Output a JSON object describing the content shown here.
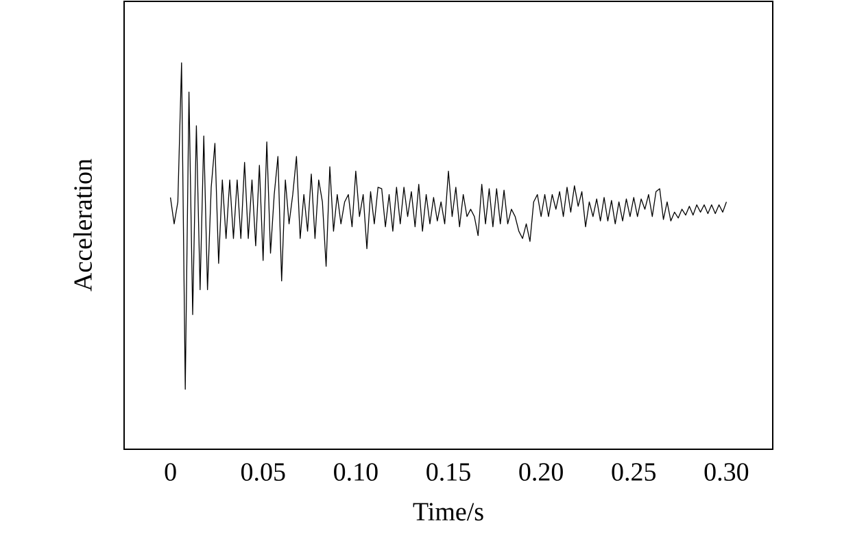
{
  "chart_data": {
    "type": "line",
    "xlabel": "Time/s",
    "ylabel": "Acceleration",
    "x": [
      0,
      0.002,
      0.004,
      0.006,
      0.008,
      0.01,
      0.012,
      0.014,
      0.016,
      0.018,
      0.02,
      0.022,
      0.024,
      0.026,
      0.028,
      0.03,
      0.032,
      0.034,
      0.036,
      0.038,
      0.04,
      0.042,
      0.044,
      0.046,
      0.048,
      0.05,
      0.052,
      0.054,
      0.056,
      0.058,
      0.06,
      0.062,
      0.064,
      0.066,
      0.068,
      0.07,
      0.072,
      0.074,
      0.076,
      0.078,
      0.08,
      0.082,
      0.084,
      0.086,
      0.088,
      0.09,
      0.092,
      0.094,
      0.096,
      0.098,
      0.1,
      0.102,
      0.104,
      0.106,
      0.108,
      0.11,
      0.112,
      0.114,
      0.116,
      0.118,
      0.12,
      0.122,
      0.124,
      0.126,
      0.128,
      0.13,
      0.132,
      0.134,
      0.136,
      0.138,
      0.14,
      0.142,
      0.144,
      0.146,
      0.148,
      0.15,
      0.152,
      0.154,
      0.156,
      0.158,
      0.16,
      0.162,
      0.164,
      0.166,
      0.168,
      0.17,
      0.172,
      0.174,
      0.176,
      0.178,
      0.18,
      0.182,
      0.184,
      0.186,
      0.188,
      0.19,
      0.192,
      0.194,
      0.196,
      0.198,
      0.2,
      0.202,
      0.204,
      0.206,
      0.208,
      0.21,
      0.212,
      0.214,
      0.216,
      0.218,
      0.22,
      0.222,
      0.224,
      0.226,
      0.228,
      0.23,
      0.232,
      0.234,
      0.236,
      0.238,
      0.24,
      0.242,
      0.244,
      0.246,
      0.248,
      0.25,
      0.252,
      0.254,
      0.256,
      0.258,
      0.26,
      0.262,
      0.264,
      0.266,
      0.268,
      0.27,
      0.272,
      0.274,
      0.276,
      0.278,
      0.28,
      0.282,
      0.284,
      0.286,
      0.288,
      0.29,
      0.292,
      0.294,
      0.296,
      0.298,
      0.3
    ],
    "values": [
      0.08,
      -0.1,
      0.05,
      1.0,
      -1.23,
      0.8,
      -0.72,
      0.57,
      -0.55,
      0.5,
      -0.55,
      0.15,
      0.45,
      -0.37,
      0.2,
      -0.2,
      0.2,
      -0.2,
      0.2,
      -0.2,
      0.32,
      -0.2,
      0.2,
      -0.25,
      0.3,
      -0.35,
      0.46,
      -0.3,
      0.1,
      0.36,
      -0.49,
      0.2,
      -0.1,
      0.1,
      0.36,
      -0.2,
      0.1,
      -0.15,
      0.24,
      -0.2,
      0.2,
      0.05,
      -0.39,
      0.29,
      -0.15,
      0.1,
      -0.1,
      0.05,
      0.1,
      -0.12,
      0.26,
      -0.05,
      0.1,
      -0.27,
      0.12,
      -0.1,
      0.15,
      0.14,
      -0.12,
      0.1,
      -0.15,
      0.15,
      -0.1,
      0.15,
      -0.05,
      0.12,
      -0.12,
      0.17,
      -0.15,
      0.1,
      -0.1,
      0.08,
      -0.08,
      0.05,
      -0.1,
      0.26,
      -0.05,
      0.15,
      -0.12,
      0.1,
      -0.05,
      0.0,
      -0.05,
      -0.18,
      0.17,
      -0.1,
      0.14,
      -0.12,
      0.14,
      -0.1,
      0.13,
      -0.1,
      0.0,
      -0.05,
      -0.15,
      -0.2,
      -0.1,
      -0.22,
      0.05,
      0.1,
      -0.05,
      0.1,
      -0.05,
      0.1,
      0.0,
      0.12,
      -0.05,
      0.15,
      -0.02,
      0.16,
      0.02,
      0.12,
      -0.12,
      0.05,
      -0.05,
      0.07,
      -0.08,
      0.08,
      -0.08,
      0.06,
      -0.1,
      0.05,
      -0.08,
      0.07,
      -0.05,
      0.08,
      -0.05,
      0.07,
      0.0,
      0.1,
      -0.05,
      0.12,
      0.14,
      -0.07,
      0.05,
      -0.08,
      -0.02,
      -0.06,
      0.0,
      -0.04,
      0.02,
      -0.04,
      0.03,
      -0.02,
      0.03,
      -0.03,
      0.03,
      -0.03,
      0.03,
      -0.02,
      0.05
    ],
    "color": "#000000",
    "xlim": [
      -0.025,
      0.325
    ],
    "ylim": [
      -1.64,
      1.42
    ],
    "xticks": [
      0,
      0.05,
      {
        "value": 0.1,
        "label": "0.10"
      },
      0.15,
      {
        "value": 0.2,
        "label": "0.20"
      },
      0.25,
      {
        "value": 0.3,
        "label": "0.30"
      }
    ]
  }
}
